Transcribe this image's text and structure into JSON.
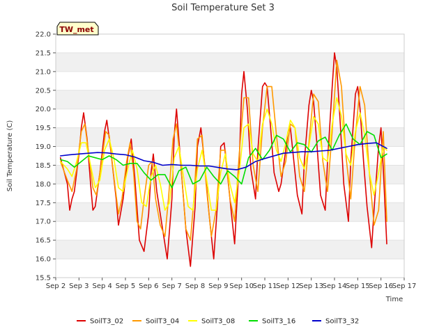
{
  "chart_data": {
    "type": "line",
    "title": "Soil Temperature Set 3",
    "xlabel": "Time",
    "ylabel": "Soil Temperature (C)",
    "ylim": [
      15.5,
      22.0
    ],
    "yticks": [
      "15.5",
      "16.0",
      "16.5",
      "17.0",
      "17.5",
      "18.0",
      "18.5",
      "19.0",
      "19.5",
      "20.0",
      "20.5",
      "21.0",
      "21.5",
      "22.0"
    ],
    "x_tick_labels": [
      "Sep 2",
      "Sep 3",
      "Sep 4",
      "Sep 5",
      "Sep 6",
      "Sep 7",
      "Sep 8",
      "Sep 9",
      "Sep 10",
      "Sep 11",
      "Sep 12",
      "Sep 13",
      "Sep 14",
      "Sep 15",
      "Sep 16",
      "Sep 17"
    ],
    "x_units": "day of September (numeric, 2 = Sep 2)",
    "xlim": [
      2,
      17
    ],
    "grid": "horizontal bands",
    "legend_position": "bottom",
    "station_label": "TW_met",
    "series": [
      {
        "name": "SoilT3_02",
        "color": "#dd0000",
        "x": [
          2.2,
          2.5,
          2.6,
          2.7,
          2.8,
          3.0,
          3.1,
          3.2,
          3.35,
          3.5,
          3.6,
          3.7,
          3.9,
          4.1,
          4.2,
          4.35,
          4.6,
          4.7,
          4.9,
          5.1,
          5.25,
          5.4,
          5.6,
          5.8,
          6.0,
          6.1,
          6.2,
          6.35,
          6.6,
          6.8,
          7.0,
          7.1,
          7.2,
          7.35,
          7.6,
          7.8,
          8.0,
          8.1,
          8.25,
          8.4,
          8.6,
          8.8,
          9.0,
          9.1,
          9.25,
          9.4,
          9.6,
          9.7,
          9.9,
          10.0,
          10.1,
          10.25,
          10.4,
          10.6,
          10.7,
          10.9,
          11.0,
          11.1,
          11.25,
          11.4,
          11.6,
          11.7,
          11.9,
          12.0,
          12.1,
          12.25,
          12.4,
          12.6,
          12.7,
          12.9,
          13.0,
          13.1,
          13.25,
          13.4,
          13.6,
          13.7,
          13.9,
          14.0,
          14.1,
          14.25,
          14.4,
          14.6,
          14.7,
          14.9,
          15.0,
          15.1,
          15.25,
          15.4,
          15.6,
          15.7,
          15.9,
          16.0,
          16.1,
          16.25
        ],
        "y": [
          18.7,
          18.0,
          17.3,
          17.6,
          17.8,
          18.8,
          19.5,
          19.9,
          19.2,
          18.0,
          17.3,
          17.4,
          18.3,
          19.4,
          19.7,
          19.0,
          17.6,
          16.9,
          17.6,
          18.7,
          19.2,
          18.2,
          16.5,
          16.2,
          17.2,
          18.3,
          18.8,
          17.8,
          16.8,
          16.0,
          17.6,
          19.3,
          20.0,
          18.8,
          16.8,
          15.8,
          17.4,
          19.0,
          19.5,
          18.6,
          17.2,
          16.0,
          17.8,
          19.0,
          19.1,
          18.2,
          17.0,
          16.4,
          18.6,
          20.4,
          21.0,
          20.0,
          18.4,
          17.6,
          18.9,
          20.6,
          20.7,
          20.6,
          19.5,
          18.3,
          17.8,
          18.0,
          18.9,
          19.4,
          19.5,
          18.6,
          17.7,
          17.2,
          18.6,
          20.1,
          20.5,
          20.2,
          19.0,
          17.7,
          17.3,
          18.6,
          20.6,
          21.5,
          21.1,
          19.6,
          18.0,
          17.0,
          18.6,
          20.4,
          20.6,
          20.0,
          18.6,
          17.4,
          16.3,
          17.3,
          19.0,
          19.5,
          18.4,
          16.4
        ]
      },
      {
        "name": "SoilT3_04",
        "color": "#ff9900",
        "x": [
          2.2,
          2.5,
          2.7,
          2.9,
          3.1,
          3.25,
          3.4,
          3.6,
          3.75,
          3.95,
          4.15,
          4.3,
          4.5,
          4.7,
          4.85,
          5.05,
          5.2,
          5.35,
          5.5,
          5.65,
          5.8,
          6.0,
          6.15,
          6.3,
          6.5,
          6.7,
          6.85,
          7.05,
          7.2,
          7.4,
          7.6,
          7.8,
          7.95,
          8.1,
          8.3,
          8.5,
          8.7,
          8.9,
          9.1,
          9.3,
          9.5,
          9.7,
          9.9,
          10.1,
          10.3,
          10.5,
          10.7,
          10.9,
          11.1,
          11.3,
          11.5,
          11.7,
          11.9,
          12.1,
          12.3,
          12.5,
          12.7,
          12.9,
          13.1,
          13.3,
          13.5,
          13.7,
          13.9,
          14.1,
          14.3,
          14.5,
          14.7,
          14.9,
          15.1,
          15.3,
          15.5,
          15.7,
          15.9,
          16.1,
          16.25
        ],
        "y": [
          18.6,
          18.1,
          17.8,
          18.4,
          19.4,
          19.6,
          18.9,
          17.9,
          17.7,
          18.5,
          19.4,
          19.3,
          18.2,
          17.2,
          17.6,
          18.6,
          19.1,
          18.3,
          17.0,
          16.8,
          17.6,
          18.5,
          18.6,
          17.6,
          16.9,
          16.6,
          17.6,
          19.2,
          19.6,
          18.4,
          16.8,
          16.5,
          17.6,
          19.2,
          19.3,
          17.8,
          16.6,
          17.3,
          18.9,
          18.9,
          17.6,
          17.0,
          18.8,
          20.3,
          20.3,
          18.5,
          17.8,
          19.5,
          20.6,
          20.6,
          19.3,
          18.2,
          18.6,
          19.6,
          19.5,
          18.2,
          17.8,
          19.1,
          20.4,
          20.2,
          18.6,
          17.8,
          19.4,
          21.3,
          20.6,
          18.7,
          17.6,
          19.3,
          20.6,
          20.1,
          18.3,
          16.9,
          17.3,
          19.4,
          17.0
        ]
      },
      {
        "name": "SoilT3_08",
        "color": "#ffff00",
        "x": [
          2.2,
          2.5,
          2.7,
          2.9,
          3.1,
          3.3,
          3.5,
          3.7,
          3.9,
          4.1,
          4.3,
          4.5,
          4.7,
          4.9,
          5.1,
          5.3,
          5.5,
          5.7,
          5.9,
          6.1,
          6.3,
          6.5,
          6.7,
          6.9,
          7.1,
          7.3,
          7.5,
          7.7,
          7.9,
          8.1,
          8.3,
          8.5,
          8.7,
          8.9,
          9.1,
          9.3,
          9.5,
          9.7,
          9.9,
          10.1,
          10.3,
          10.5,
          10.7,
          10.9,
          11.1,
          11.3,
          11.5,
          11.7,
          11.9,
          12.1,
          12.3,
          12.5,
          12.7,
          12.9,
          13.1,
          13.3,
          13.5,
          13.7,
          13.9,
          14.1,
          14.3,
          14.5,
          14.7,
          14.9,
          15.1,
          15.3,
          15.5,
          15.7,
          15.9,
          16.1,
          16.25
        ],
        "y": [
          18.6,
          18.4,
          18.2,
          18.6,
          19.1,
          19.1,
          18.5,
          17.9,
          18.1,
          18.9,
          19.2,
          18.7,
          17.9,
          17.8,
          18.4,
          18.9,
          18.4,
          17.5,
          17.4,
          18.2,
          18.5,
          18.0,
          17.3,
          17.5,
          18.7,
          19.0,
          18.2,
          17.4,
          17.3,
          18.4,
          18.9,
          18.1,
          17.3,
          17.3,
          18.3,
          18.8,
          18.0,
          17.5,
          18.3,
          19.5,
          19.6,
          18.8,
          18.6,
          19.6,
          20.0,
          19.6,
          18.9,
          18.6,
          19.1,
          19.7,
          19.5,
          18.7,
          18.4,
          19.0,
          19.8,
          19.6,
          18.7,
          18.6,
          19.6,
          20.3,
          19.8,
          18.8,
          18.5,
          19.4,
          19.9,
          19.3,
          18.3,
          17.7,
          18.3,
          19.0,
          18.9
        ]
      },
      {
        "name": "SoilT3_16",
        "color": "#00dd00",
        "x": [
          2.2,
          2.5,
          2.8,
          3.1,
          3.4,
          3.7,
          4.0,
          4.3,
          4.6,
          4.9,
          5.2,
          5.5,
          5.8,
          6.1,
          6.4,
          6.7,
          7.0,
          7.3,
          7.6,
          7.9,
          8.2,
          8.5,
          8.8,
          9.1,
          9.4,
          9.7,
          10.0,
          10.3,
          10.6,
          10.9,
          11.2,
          11.5,
          11.8,
          12.1,
          12.4,
          12.7,
          13.0,
          13.3,
          13.6,
          13.9,
          14.2,
          14.5,
          14.8,
          15.1,
          15.4,
          15.7,
          16.0,
          16.25
        ],
        "y": [
          18.65,
          18.6,
          18.45,
          18.6,
          18.75,
          18.7,
          18.65,
          18.75,
          18.65,
          18.5,
          18.55,
          18.55,
          18.3,
          18.1,
          18.25,
          18.25,
          17.9,
          18.35,
          18.45,
          18.0,
          18.1,
          18.45,
          18.2,
          18.0,
          18.35,
          18.2,
          18.0,
          18.7,
          18.95,
          18.65,
          18.9,
          19.3,
          19.2,
          18.85,
          19.1,
          19.05,
          18.85,
          19.15,
          19.25,
          18.9,
          19.3,
          19.6,
          19.2,
          19.05,
          19.4,
          19.3,
          18.7,
          18.8
        ]
      },
      {
        "name": "SoilT3_32",
        "color": "#0000cc",
        "x": [
          2.2,
          2.6,
          3.0,
          3.4,
          3.8,
          4.2,
          4.6,
          5.0,
          5.4,
          5.8,
          6.2,
          6.6,
          7.0,
          7.4,
          7.8,
          8.2,
          8.6,
          9.0,
          9.4,
          9.8,
          10.2,
          10.6,
          11.0,
          11.4,
          11.8,
          12.2,
          12.6,
          13.0,
          13.4,
          13.8,
          14.2,
          14.6,
          15.0,
          15.4,
          15.8,
          16.25
        ],
        "y": [
          18.75,
          18.78,
          18.8,
          18.82,
          18.84,
          18.83,
          18.8,
          18.78,
          18.72,
          18.62,
          18.58,
          18.5,
          18.52,
          18.5,
          18.5,
          18.48,
          18.48,
          18.44,
          18.4,
          18.38,
          18.45,
          18.6,
          18.68,
          18.75,
          18.82,
          18.84,
          18.86,
          18.86,
          18.88,
          18.9,
          18.95,
          19.0,
          19.05,
          19.08,
          19.1,
          18.95
        ]
      }
    ]
  }
}
